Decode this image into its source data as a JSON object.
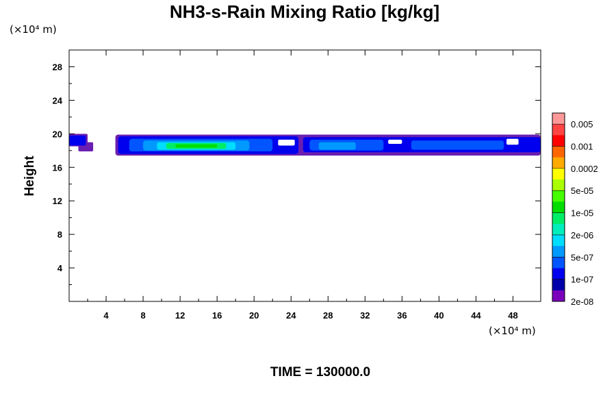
{
  "chart_data": {
    "type": "heatmap",
    "title": "NH3-s-Rain Mixing Ratio [kg/kg]",
    "ylabel": "Height",
    "x_unit_label": "(×10⁴ m)",
    "y_unit_label": "(×10⁴ m)",
    "time_label": "TIME = 130000.0",
    "xlim": [
      0,
      51
    ],
    "ylim": [
      0,
      30
    ],
    "x_ticks": [
      4,
      8,
      12,
      16,
      20,
      24,
      28,
      32,
      36,
      40,
      44,
      48
    ],
    "y_ticks": [
      4,
      8,
      12,
      16,
      20,
      24,
      28
    ],
    "colorbar": {
      "labels": [
        "0.005",
        "0.001",
        "0.0002",
        "5e-05",
        "1e-05",
        "2e-06",
        "5e-07",
        "1e-07",
        "2e-08"
      ],
      "colors_top_to_bottom": [
        "#ff9999",
        "#ff4444",
        "#ff0000",
        "#ff6600",
        "#ffaa00",
        "#ffff00",
        "#aaff00",
        "#44ff00",
        "#00dd00",
        "#00ee66",
        "#00eebb",
        "#00ddff",
        "#0099ff",
        "#0055ff",
        "#0000ee",
        "#0000aa",
        "#7a00bb"
      ]
    },
    "layer": {
      "y_bottom_approx": 17.5,
      "y_top_approx": 19.8,
      "x_start_approx": 0,
      "x_end_approx": 51,
      "max_region": {
        "x_range": [
          10.5,
          17
        ],
        "level": "1e-05"
      }
    }
  }
}
